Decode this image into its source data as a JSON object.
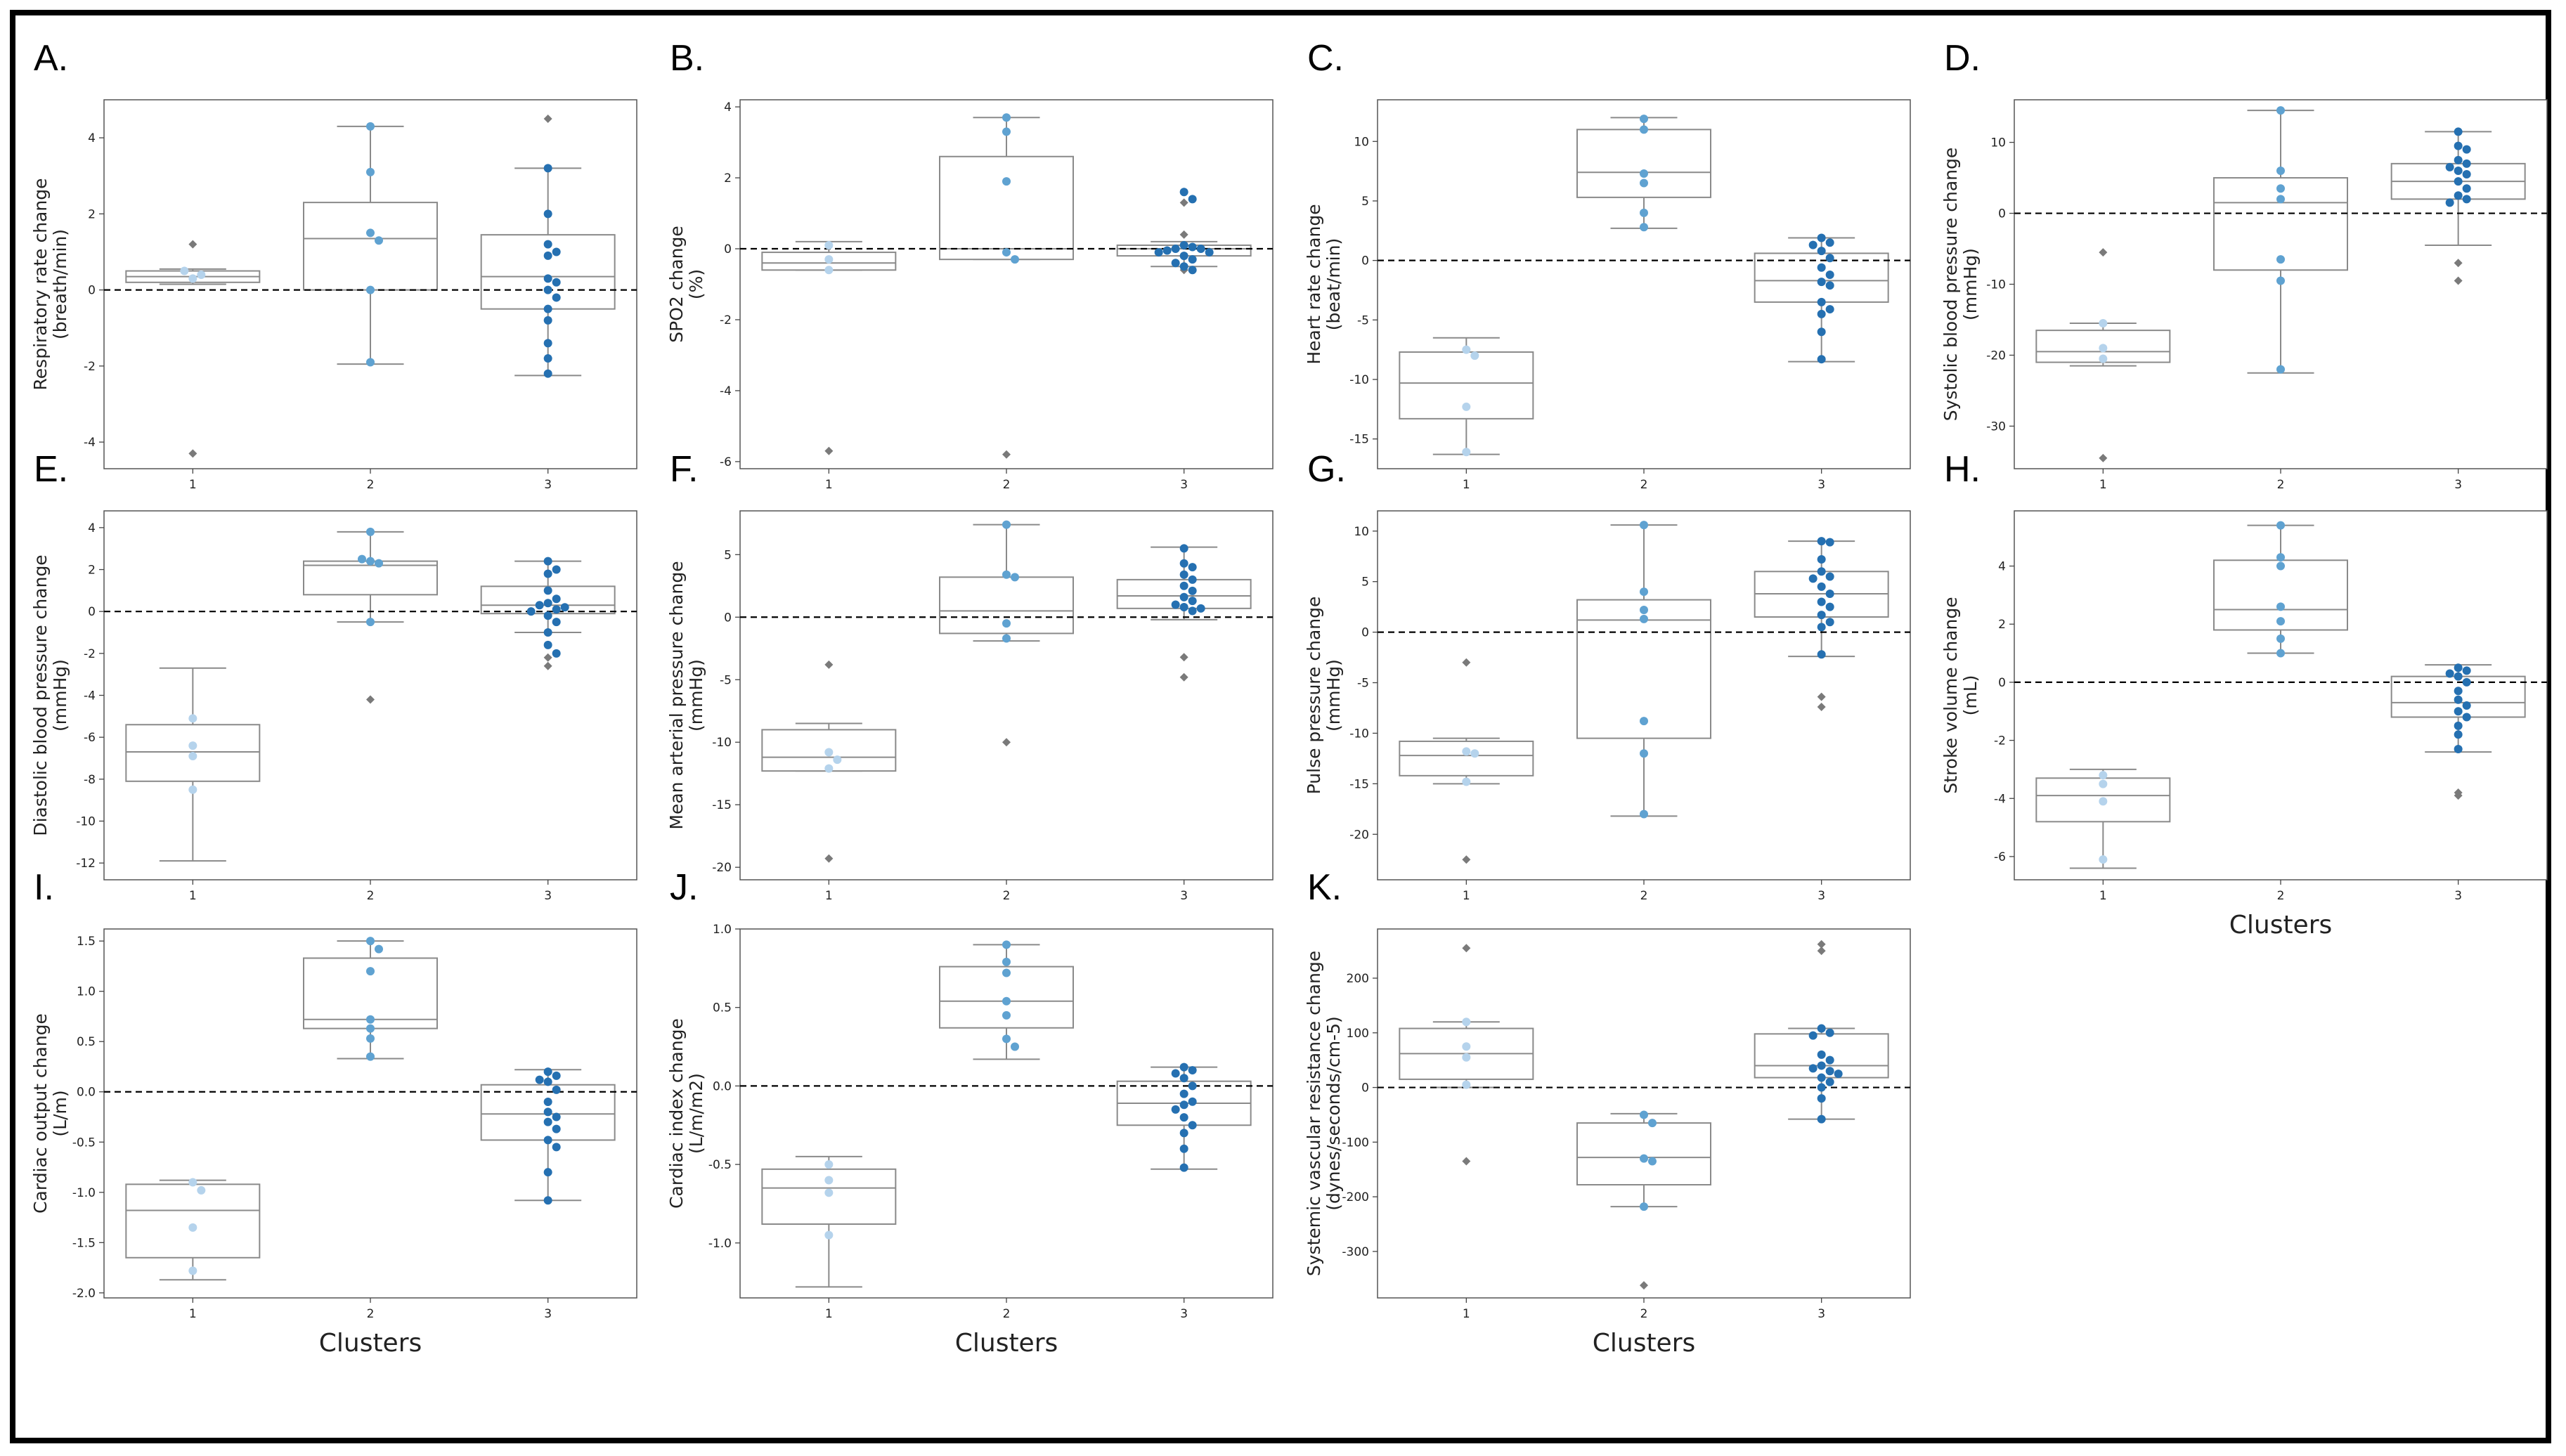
{
  "figure": {
    "x_axis_title": "Clusters",
    "categories": [
      "1",
      "2",
      "3"
    ]
  },
  "colors": {
    "cluster1": "#b5d3ec",
    "cluster2": "#5fa2d1",
    "cluster3": "#2570b1",
    "box": "#8a8a8a",
    "outlier": "#7a7a7a",
    "zero_line": "#000000"
  },
  "chart_data": [
    {
      "id": "A",
      "type": "box",
      "letter": "A.",
      "ylabel_lines": [
        "Respiratory rate change",
        "(breath/min)"
      ],
      "ylim": [
        -4.7,
        5.0
      ],
      "yticks": [
        -4,
        -2,
        0,
        2,
        4
      ],
      "show_xlabel": false,
      "boxes": [
        {
          "q1": 0.2,
          "median": 0.35,
          "q3": 0.5,
          "whisker_low": 0.15,
          "whisker_high": 0.55,
          "outliers": [
            1.2,
            -4.3
          ]
        },
        {
          "q1": 0.0,
          "median": 1.35,
          "q3": 2.3,
          "whisker_low": -1.95,
          "whisker_high": 4.3,
          "outliers": []
        },
        {
          "q1": -0.5,
          "median": 0.35,
          "q3": 1.45,
          "whisker_low": -2.25,
          "whisker_high": 3.2,
          "outliers": [
            4.5
          ]
        }
      ],
      "points": [
        [
          0.3,
          0.4,
          0.5
        ],
        [
          4.3,
          3.1,
          1.5,
          1.3,
          0.0,
          -1.9
        ],
        [
          3.2,
          2.0,
          1.2,
          1.0,
          0.9,
          0.3,
          0.2,
          0.0,
          -0.2,
          -0.5,
          -0.8,
          -1.4,
          -1.8,
          -2.2
        ]
      ]
    },
    {
      "id": "B",
      "type": "box",
      "letter": "B.",
      "ylabel_lines": [
        "SPO2 change",
        "(%)"
      ],
      "ylim": [
        -6.2,
        4.2
      ],
      "yticks": [
        -6,
        -4,
        -2,
        0,
        2,
        4
      ],
      "show_xlabel": false,
      "boxes": [
        {
          "q1": -0.6,
          "median": -0.4,
          "q3": -0.1,
          "whisker_low": -0.6,
          "whisker_high": 0.2,
          "outliers": [
            -5.7
          ]
        },
        {
          "q1": -0.3,
          "median": 0.0,
          "q3": 2.6,
          "whisker_low": -0.3,
          "whisker_high": 3.7,
          "outliers": [
            -5.8
          ]
        },
        {
          "q1": -0.2,
          "median": 0.0,
          "q3": 0.1,
          "whisker_low": -0.5,
          "whisker_high": 0.2,
          "outliers": [
            1.6,
            1.3,
            0.4,
            -0.6
          ]
        }
      ],
      "points": [
        [
          0.1,
          -0.3,
          -0.6
        ],
        [
          3.7,
          3.3,
          1.9,
          -0.1,
          -0.3
        ],
        [
          1.6,
          1.4,
          0.1,
          0.05,
          0.0,
          0.0,
          -0.05,
          -0.1,
          -0.1,
          -0.2,
          -0.3,
          -0.4,
          -0.5,
          -0.6
        ]
      ]
    },
    {
      "id": "C",
      "type": "box",
      "letter": "C.",
      "ylabel_lines": [
        "Heart rate change",
        "(beat/min)"
      ],
      "ylim": [
        -17.5,
        13.5
      ],
      "yticks": [
        -15,
        -10,
        -5,
        0,
        5,
        10
      ],
      "show_xlabel": false,
      "boxes": [
        {
          "q1": -13.3,
          "median": -10.3,
          "q3": -7.7,
          "whisker_low": -16.3,
          "whisker_high": -6.5,
          "outliers": []
        },
        {
          "q1": 5.3,
          "median": 7.4,
          "q3": 11.0,
          "whisker_low": 2.7,
          "whisker_high": 12.0,
          "outliers": []
        },
        {
          "q1": -3.5,
          "median": -1.7,
          "q3": 0.6,
          "whisker_low": -8.5,
          "whisker_high": 1.9,
          "outliers": []
        }
      ],
      "points": [
        [
          -7.5,
          -8.0,
          -12.3,
          -16.1
        ],
        [
          11.9,
          11.0,
          7.3,
          6.5,
          4.0,
          2.8
        ],
        [
          1.9,
          1.5,
          1.3,
          0.8,
          0.2,
          -0.6,
          -1.2,
          -1.8,
          -2.1,
          -3.5,
          -4.1,
          -4.5,
          -6.0,
          -8.3
        ]
      ]
    },
    {
      "id": "D",
      "type": "box",
      "letter": "D.",
      "ylabel_lines": [
        "Systolic blood pressure change",
        "(mmHg)"
      ],
      "ylim": [
        -36,
        16
      ],
      "yticks": [
        -30,
        -20,
        -10,
        0,
        10
      ],
      "show_xlabel": false,
      "boxes": [
        {
          "q1": -21.0,
          "median": -19.5,
          "q3": -16.5,
          "whisker_low": -21.5,
          "whisker_high": -15.5,
          "outliers": [
            -5.5,
            -34.5
          ]
        },
        {
          "q1": -8.0,
          "median": 1.5,
          "q3": 5.0,
          "whisker_low": -22.5,
          "whisker_high": 14.5,
          "outliers": []
        },
        {
          "q1": 2.0,
          "median": 4.5,
          "q3": 7.0,
          "whisker_low": -4.5,
          "whisker_high": 11.5,
          "outliers": [
            -7.0,
            -9.5
          ]
        }
      ],
      "points": [
        [
          -15.5,
          -19.0,
          -20.5
        ],
        [
          14.5,
          6.0,
          3.5,
          2.0,
          -6.5,
          -9.5,
          -22.0
        ],
        [
          11.5,
          9.5,
          9.0,
          7.5,
          7.0,
          6.5,
          6.0,
          5.5,
          4.5,
          3.5,
          2.5,
          2.0,
          1.5
        ]
      ]
    },
    {
      "id": "E",
      "type": "box",
      "letter": "E.",
      "ylabel_lines": [
        "Diastolic blood pressure change",
        "(mmHg)"
      ],
      "ylim": [
        -12.8,
        4.8
      ],
      "yticks": [
        -12,
        -10,
        -8,
        -6,
        -4,
        -2,
        0,
        2,
        4
      ],
      "show_xlabel": false,
      "boxes": [
        {
          "q1": -8.1,
          "median": -6.7,
          "q3": -5.4,
          "whisker_low": -11.9,
          "whisker_high": -2.7,
          "outliers": []
        },
        {
          "q1": 0.8,
          "median": 2.2,
          "q3": 2.4,
          "whisker_low": -0.5,
          "whisker_high": 3.8,
          "outliers": [
            -4.2
          ]
        },
        {
          "q1": -0.1,
          "median": 0.3,
          "q3": 1.2,
          "whisker_low": -1.0,
          "whisker_high": 2.4,
          "outliers": [
            -2.2,
            -2.6
          ]
        }
      ],
      "points": [
        [
          -5.1,
          -6.4,
          -6.9,
          -8.5
        ],
        [
          3.8,
          2.4,
          2.3,
          2.5,
          -0.5
        ],
        [
          2.4,
          2.0,
          1.8,
          1.0,
          0.6,
          0.4,
          0.3,
          0.2,
          0.1,
          0.0,
          -0.2,
          -0.5,
          -1.0,
          -1.6,
          -2.0
        ]
      ]
    },
    {
      "id": "F",
      "type": "box",
      "letter": "F.",
      "ylabel_lines": [
        "Mean arterial pressure change",
        "(mmHg)"
      ],
      "ylim": [
        -21,
        8.5
      ],
      "yticks": [
        -20,
        -15,
        -10,
        -5,
        0,
        5
      ],
      "show_xlabel": false,
      "boxes": [
        {
          "q1": -12.3,
          "median": -11.2,
          "q3": -9.0,
          "whisker_low": -12.3,
          "whisker_high": -8.5,
          "outliers": [
            -3.8,
            -19.3
          ]
        },
        {
          "q1": -1.3,
          "median": 0.5,
          "q3": 3.2,
          "whisker_low": -1.9,
          "whisker_high": 7.4,
          "outliers": [
            -10.0
          ]
        },
        {
          "q1": 0.7,
          "median": 1.7,
          "q3": 3.0,
          "whisker_low": -0.2,
          "whisker_high": 5.6,
          "outliers": [
            -3.2,
            -4.8
          ]
        }
      ],
      "points": [
        [
          -10.8,
          -11.4,
          -12.1
        ],
        [
          7.4,
          3.4,
          3.2,
          -0.5,
          -1.7
        ],
        [
          5.5,
          4.3,
          4.0,
          3.4,
          3.0,
          2.5,
          2.1,
          1.6,
          1.3,
          1.0,
          0.8,
          0.7,
          0.5
        ]
      ]
    },
    {
      "id": "G",
      "type": "box",
      "letter": "G.",
      "ylabel_lines": [
        "Pulse pressure change",
        "(mmHg)"
      ],
      "ylim": [
        -24.5,
        12
      ],
      "yticks": [
        -20,
        -15,
        -10,
        -5,
        0,
        5,
        10
      ],
      "show_xlabel": false,
      "boxes": [
        {
          "q1": -14.2,
          "median": -12.2,
          "q3": -10.8,
          "whisker_low": -15.0,
          "whisker_high": -10.5,
          "outliers": [
            -3.0,
            -22.5
          ]
        },
        {
          "q1": -10.5,
          "median": 1.2,
          "q3": 3.2,
          "whisker_low": -18.2,
          "whisker_high": 10.6,
          "outliers": []
        },
        {
          "q1": 1.5,
          "median": 3.8,
          "q3": 6.0,
          "whisker_low": -2.4,
          "whisker_high": 9.0,
          "outliers": [
            -6.4,
            -7.4
          ]
        }
      ],
      "points": [
        [
          -11.8,
          -12.0,
          -14.8
        ],
        [
          10.6,
          4.0,
          2.2,
          1.3,
          -8.8,
          -12.0,
          -18.0
        ],
        [
          9.0,
          8.9,
          7.2,
          6.0,
          5.5,
          5.3,
          4.5,
          3.8,
          3.0,
          2.5,
          1.7,
          1.0,
          0.5,
          -2.2
        ]
      ]
    },
    {
      "id": "H",
      "type": "box",
      "letter": "H.",
      "ylabel_lines": [
        "Stroke volume change",
        "(mL)"
      ],
      "ylim": [
        -6.8,
        5.9
      ],
      "yticks": [
        -6,
        -4,
        -2,
        0,
        2,
        4
      ],
      "show_xlabel": true,
      "boxes": [
        {
          "q1": -4.8,
          "median": -3.9,
          "q3": -3.3,
          "whisker_low": -6.4,
          "whisker_high": -3.0,
          "outliers": []
        },
        {
          "q1": 1.8,
          "median": 2.5,
          "q3": 4.2,
          "whisker_low": 1.0,
          "whisker_high": 5.4,
          "outliers": []
        },
        {
          "q1": -1.2,
          "median": -0.7,
          "q3": 0.2,
          "whisker_low": -2.4,
          "whisker_high": 0.6,
          "outliers": [
            -3.8,
            -3.9
          ]
        }
      ],
      "points": [
        [
          -3.2,
          -3.5,
          -4.1,
          -6.1
        ],
        [
          5.4,
          4.3,
          4.0,
          2.6,
          2.1,
          1.5,
          1.0
        ],
        [
          0.5,
          0.4,
          0.3,
          0.2,
          0.0,
          -0.3,
          -0.6,
          -0.8,
          -1.0,
          -1.2,
          -1.5,
          -1.8,
          -2.3
        ]
      ]
    },
    {
      "id": "I",
      "type": "box",
      "letter": "I.",
      "ylabel_lines": [
        "Cardiac output change",
        "(L/m)"
      ],
      "ylim": [
        -2.05,
        1.62
      ],
      "yticks": [
        -2.0,
        -1.5,
        -1.0,
        -0.5,
        0.0,
        0.5,
        1.0,
        1.5
      ],
      "ytick_decimals": 1,
      "show_xlabel": true,
      "boxes": [
        {
          "q1": -1.65,
          "median": -1.18,
          "q3": -0.92,
          "whisker_low": -1.87,
          "whisker_high": -0.88,
          "outliers": []
        },
        {
          "q1": 0.63,
          "median": 0.72,
          "q3": 1.33,
          "whisker_low": 0.33,
          "whisker_high": 1.5,
          "outliers": []
        },
        {
          "q1": -0.48,
          "median": -0.22,
          "q3": 0.07,
          "whisker_low": -1.08,
          "whisker_high": 0.22,
          "outliers": []
        }
      ],
      "points": [
        [
          -0.9,
          -0.98,
          -1.35,
          -1.78
        ],
        [
          1.5,
          1.42,
          1.2,
          0.72,
          0.63,
          0.53,
          0.35
        ],
        [
          0.2,
          0.16,
          0.12,
          0.1,
          0.02,
          -0.1,
          -0.2,
          -0.25,
          -0.3,
          -0.37,
          -0.48,
          -0.55,
          -0.8,
          -1.08
        ]
      ]
    },
    {
      "id": "J",
      "type": "box",
      "letter": "J.",
      "ylabel_lines": [
        "Cardiac index change",
        "(L/m/m2)"
      ],
      "ylim": [
        -1.35,
        1.0
      ],
      "yticks": [
        -1.0,
        -0.5,
        0.0,
        0.5,
        1.0
      ],
      "ytick_decimals": 1,
      "show_xlabel": true,
      "boxes": [
        {
          "q1": -0.88,
          "median": -0.65,
          "q3": -0.53,
          "whisker_low": -1.28,
          "whisker_high": -0.45,
          "outliers": []
        },
        {
          "q1": 0.37,
          "median": 0.54,
          "q3": 0.76,
          "whisker_low": 0.17,
          "whisker_high": 0.9,
          "outliers": []
        },
        {
          "q1": -0.25,
          "median": -0.11,
          "q3": 0.03,
          "whisker_low": -0.53,
          "whisker_high": 0.12,
          "outliers": []
        }
      ],
      "points": [
        [
          -0.5,
          -0.6,
          -0.68,
          -0.95
        ],
        [
          0.9,
          0.79,
          0.72,
          0.54,
          0.45,
          0.3,
          0.25
        ],
        [
          0.12,
          0.1,
          0.08,
          0.05,
          0.0,
          -0.05,
          -0.1,
          -0.12,
          -0.15,
          -0.2,
          -0.25,
          -0.3,
          -0.4,
          -0.52
        ]
      ]
    },
    {
      "id": "K",
      "type": "box",
      "letter": "K.",
      "ylabel_lines": [
        "Systemic vascular resistance change",
        "(dynes/seconds/cm-5)"
      ],
      "ylim": [
        -385,
        290
      ],
      "yticks": [
        -300,
        -200,
        -100,
        0,
        100,
        200
      ],
      "show_xlabel": true,
      "boxes": [
        {
          "q1": 15,
          "median": 62,
          "q3": 108,
          "whisker_low": 0,
          "whisker_high": 120,
          "outliers": [
            255,
            -135
          ]
        },
        {
          "q1": -178,
          "median": -128,
          "q3": -65,
          "whisker_low": -218,
          "whisker_high": -48,
          "outliers": [
            -362
          ]
        },
        {
          "q1": 18,
          "median": 40,
          "q3": 98,
          "whisker_low": -58,
          "whisker_high": 108,
          "outliers": [
            262,
            250
          ]
        }
      ],
      "points": [
        [
          120,
          75,
          55,
          5
        ],
        [
          -50,
          -65,
          -130,
          -135,
          -218
        ],
        [
          108,
          100,
          95,
          60,
          50,
          40,
          35,
          30,
          25,
          18,
          10,
          0,
          -20,
          -58
        ]
      ]
    }
  ]
}
